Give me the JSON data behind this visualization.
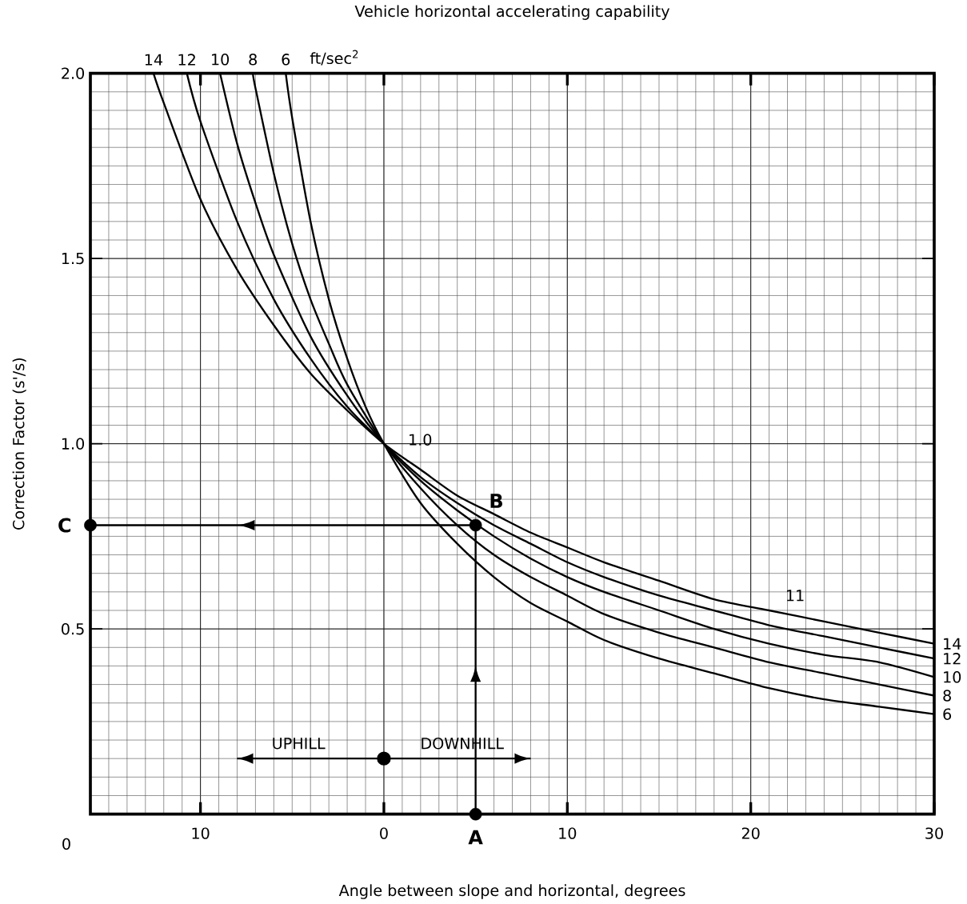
{
  "chart_data": {
    "type": "line",
    "title": "Vehicle horizontal accelerating capability",
    "xlabel": "Angle between slope and horizontal, degrees",
    "ylabel": "Correction Factor (s'/s)",
    "xlim": [
      -16,
      30
    ],
    "ylim": [
      0,
      2
    ],
    "xticks": [
      {
        "value": -10,
        "label": "10"
      },
      0,
      10,
      20,
      30
    ],
    "yticks": [
      0.5,
      {
        "value": 1,
        "label": "1.0"
      },
      1.5,
      {
        "value": 2,
        "label": "2.0"
      }
    ],
    "grid": true,
    "series": [
      {
        "name": "14",
        "color": "#000000",
        "x": [
          -12.56,
          -12,
          -10,
          -8,
          -6,
          -4,
          -2,
          0,
          2,
          4,
          6,
          8,
          10,
          12,
          15,
          18,
          21,
          24,
          27,
          30
        ],
        "values": [
          2.0,
          1.92,
          1.66,
          1.47,
          1.32,
          1.19,
          1.09,
          1.0,
          0.93,
          0.86,
          0.81,
          0.76,
          0.72,
          0.68,
          0.63,
          0.58,
          0.55,
          0.52,
          0.49,
          0.46
        ]
      },
      {
        "name": "12",
        "color": "#000000",
        "x": [
          -10.74,
          -10,
          -8,
          -6,
          -4,
          -2,
          0,
          2,
          4,
          6,
          8,
          10,
          12,
          15,
          18,
          21,
          24,
          27,
          30
        ],
        "values": [
          2.0,
          1.87,
          1.6,
          1.39,
          1.23,
          1.1,
          1.0,
          0.91,
          0.84,
          0.78,
          0.73,
          0.68,
          0.64,
          0.59,
          0.55,
          0.51,
          0.48,
          0.45,
          0.42
        ]
      },
      {
        "name": "10",
        "color": "#000000",
        "x": [
          -8.93,
          -8,
          -7,
          -6,
          -4,
          -2,
          0,
          2,
          4,
          6,
          8,
          10,
          12,
          15,
          18,
          21,
          24,
          27,
          30
        ],
        "values": [
          2.0,
          1.81,
          1.65,
          1.51,
          1.29,
          1.13,
          1.0,
          0.9,
          0.82,
          0.75,
          0.69,
          0.64,
          0.6,
          0.55,
          0.5,
          0.46,
          0.43,
          0.41,
          0.37
        ]
      },
      {
        "name": "8",
        "color": "#000000",
        "x": [
          -7.14,
          -7,
          -6,
          -5,
          -4,
          -3,
          -2,
          0,
          2,
          4,
          6,
          8,
          10,
          12,
          15,
          18,
          21,
          24,
          27,
          30
        ],
        "values": [
          2.0,
          1.96,
          1.73,
          1.54,
          1.39,
          1.27,
          1.16,
          1.0,
          0.88,
          0.78,
          0.7,
          0.64,
          0.59,
          0.54,
          0.49,
          0.45,
          0.41,
          0.38,
          0.35,
          0.32
        ]
      },
      {
        "name": "6",
        "color": "#000000",
        "x": [
          -5.35,
          -5,
          -4,
          -3,
          -2,
          -1,
          0,
          2,
          4,
          6,
          8,
          10,
          12,
          15,
          18,
          21,
          24,
          27,
          30
        ],
        "values": [
          2.0,
          1.88,
          1.6,
          1.39,
          1.23,
          1.1,
          1.0,
          0.84,
          0.73,
          0.64,
          0.57,
          0.52,
          0.47,
          0.42,
          0.38,
          0.34,
          0.31,
          0.29,
          0.27
        ]
      },
      {
        "type": "line",
        "color": "#000000",
        "marker": "circle",
        "x": [
          5,
          5,
          -16
        ],
        "values": [
          0,
          0.78,
          0.78
        ]
      },
      {
        "type": "line",
        "color": "#000000",
        "x": [
          0,
          -8
        ],
        "values": [
          0.15,
          0.15
        ]
      },
      {
        "type": "line",
        "color": "#000000",
        "x": [
          0,
          8
        ],
        "values": [
          0.15,
          0.15
        ]
      },
      {
        "type": "scatter",
        "color": "#000000",
        "marker": "circle",
        "x": [
          0
        ],
        "values": [
          0.15
        ]
      }
    ],
    "annotations": [
      {
        "text": "1.0",
        "x": 0,
        "y": 1
      },
      {
        "text": "B",
        "x": 5,
        "y": 0.78
      },
      {
        "text": "C",
        "x": -16,
        "y": 0.78
      },
      {
        "text": "A",
        "x": 5,
        "y": 0
      },
      {
        "text": "UPHILL",
        "x": -6.7,
        "y": 0.15
      },
      {
        "text": "DOWNHILL",
        "x": 1.4,
        "y": 0.15
      },
      {
        "text": "11",
        "x": 21.3,
        "y": 0.55
      },
      "ft/sec$^{2}$",
      "0"
    ]
  }
}
